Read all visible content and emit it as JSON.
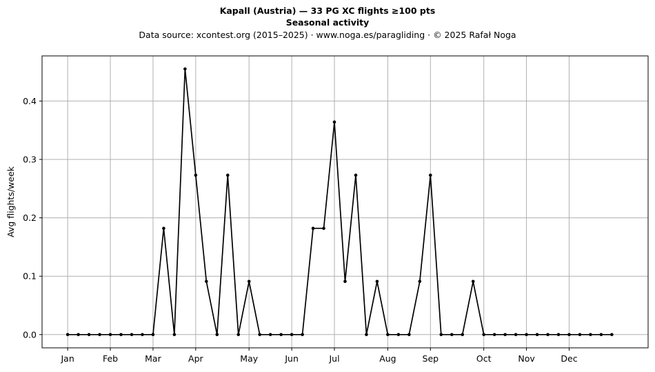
{
  "chart_data": {
    "type": "line",
    "title": "Kapall (Austria)  —  33 PG XC flights ≥100 pts",
    "subtitle": "Seasonal activity",
    "source": "Data source: xcontest.org (2015–2025)  ·  www.noga.es/paragliding  ·  © 2025 Rafał Noga",
    "xlabel": "",
    "ylabel": "Avg flights/week",
    "xlim": [
      -2.4,
      54.4
    ],
    "ylim": [
      -0.0227,
      0.4773
    ],
    "yticks": [
      0.0,
      0.1,
      0.2,
      0.3,
      0.4
    ],
    "ytick_labels": [
      "0.0",
      "0.1",
      "0.2",
      "0.3",
      "0.4"
    ],
    "xticks": [
      0,
      4,
      8,
      12,
      17,
      21,
      25,
      30,
      34,
      39,
      43,
      47
    ],
    "xtick_labels": [
      "Jan",
      "Feb",
      "Mar",
      "Apr",
      "May",
      "Jun",
      "Jul",
      "Aug",
      "Sep",
      "Oct",
      "Nov",
      "Dec"
    ],
    "grid": true,
    "legend": false,
    "line_color": "#000000",
    "grid_color": "#b0b0b0",
    "x": [
      0,
      1,
      2,
      3,
      4,
      5,
      6,
      7,
      8,
      9,
      10,
      11,
      12,
      13,
      14,
      15,
      16,
      17,
      18,
      19,
      20,
      21,
      22,
      23,
      24,
      25,
      26,
      27,
      28,
      29,
      30,
      31,
      32,
      33,
      34,
      35,
      36,
      37,
      38,
      39,
      40,
      41,
      42,
      43,
      44,
      45,
      46,
      47,
      48,
      49,
      50,
      51
    ],
    "values": [
      0,
      0,
      0,
      0,
      0,
      0,
      0,
      0,
      0,
      0.182,
      0,
      0.455,
      0.273,
      0.091,
      0,
      0.273,
      0,
      0.091,
      0,
      0,
      0,
      0,
      0,
      0.182,
      0.182,
      0.364,
      0.091,
      0.273,
      0,
      0.091,
      0,
      0,
      0,
      0.091,
      0.273,
      0,
      0,
      0,
      0.091,
      0,
      0,
      0,
      0,
      0,
      0,
      0,
      0,
      0,
      0,
      0,
      0,
      0
    ]
  }
}
